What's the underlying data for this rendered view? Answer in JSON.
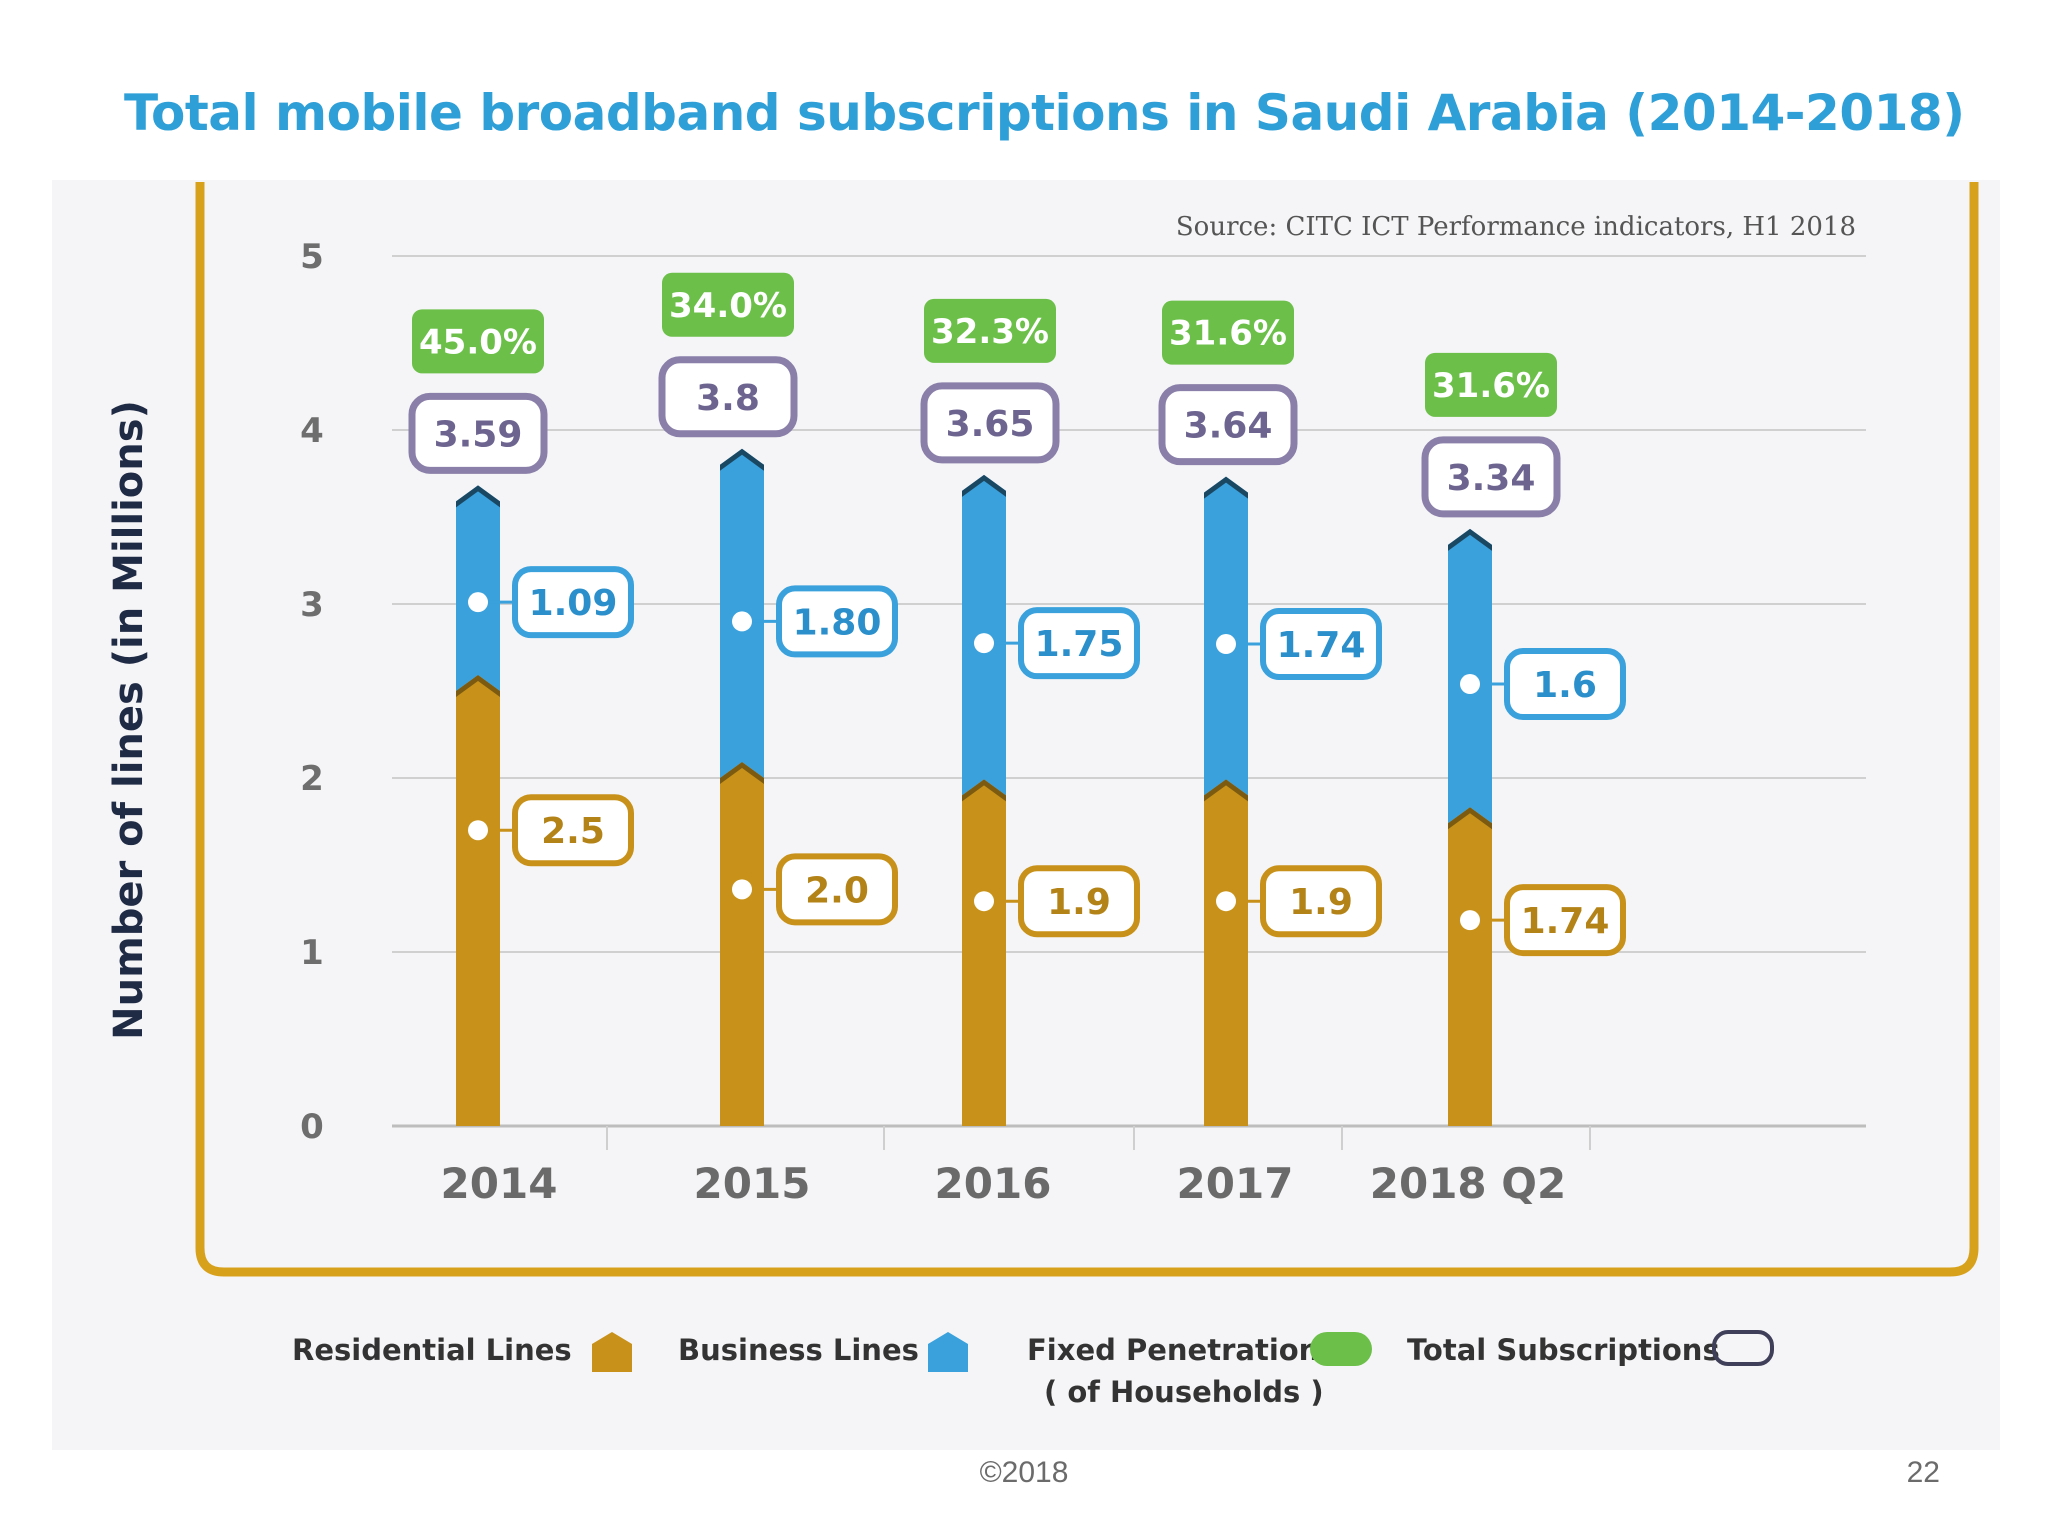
{
  "slide": {
    "title": "Total mobile broadband subscriptions in Saudi Arabia (2014-2018)",
    "copyright": "©2018",
    "page_number": "22"
  },
  "chart_data": {
    "type": "bar",
    "stacked": true,
    "title": "",
    "source": "Source: CITC ICT Performance indicators, H1 2018",
    "ylabel": "Number of lines (in Millions)",
    "xlabel": "",
    "ylim": [
      0,
      5
    ],
    "yticks": [
      "0",
      "1",
      "2",
      "3",
      "4",
      "5"
    ],
    "grid": true,
    "categories": [
      "2014",
      "2015",
      "2016",
      "2017",
      "2018 Q2"
    ],
    "series": [
      {
        "name": "Residential Lines",
        "color": "#c8921a",
        "values": [
          2.5,
          2.0,
          1.9,
          1.9,
          1.74
        ],
        "labels": [
          "2.5",
          "2.0",
          "1.9",
          "1.9",
          "1.74"
        ]
      },
      {
        "name": "Business Lines",
        "color": "#3aa1dc",
        "values": [
          1.09,
          1.8,
          1.75,
          1.74,
          1.6
        ],
        "labels": [
          "1.09",
          "1.80",
          "1.75",
          "1.74",
          "1.6"
        ]
      }
    ],
    "totals": {
      "name": "Total Subscriptions",
      "values": [
        3.59,
        3.8,
        3.65,
        3.64,
        3.34
      ],
      "labels": [
        "3.59",
        "3.8",
        "3.65",
        "3.64",
        "3.34"
      ],
      "color": "#8a7fa8"
    },
    "penetration": {
      "name": "Fixed Penetration ( of Households )",
      "labels": [
        "45.0%",
        "34.0%",
        "32.3%",
        "31.6%",
        "31.6%"
      ],
      "color": "#6cc04a"
    },
    "legend": {
      "placement": "bottom",
      "items": [
        {
          "label": "Residential Lines",
          "color": "#c8921a",
          "marker": "house"
        },
        {
          "label": "Business Lines",
          "color": "#3aa1dc",
          "marker": "house"
        },
        {
          "label": "Fixed Penetration",
          "label2": "( of Households )",
          "color": "#6cc04a",
          "marker": "pill"
        },
        {
          "label": "Total Subscriptions",
          "color": "#3f3f5a",
          "marker": "outline"
        }
      ]
    }
  }
}
